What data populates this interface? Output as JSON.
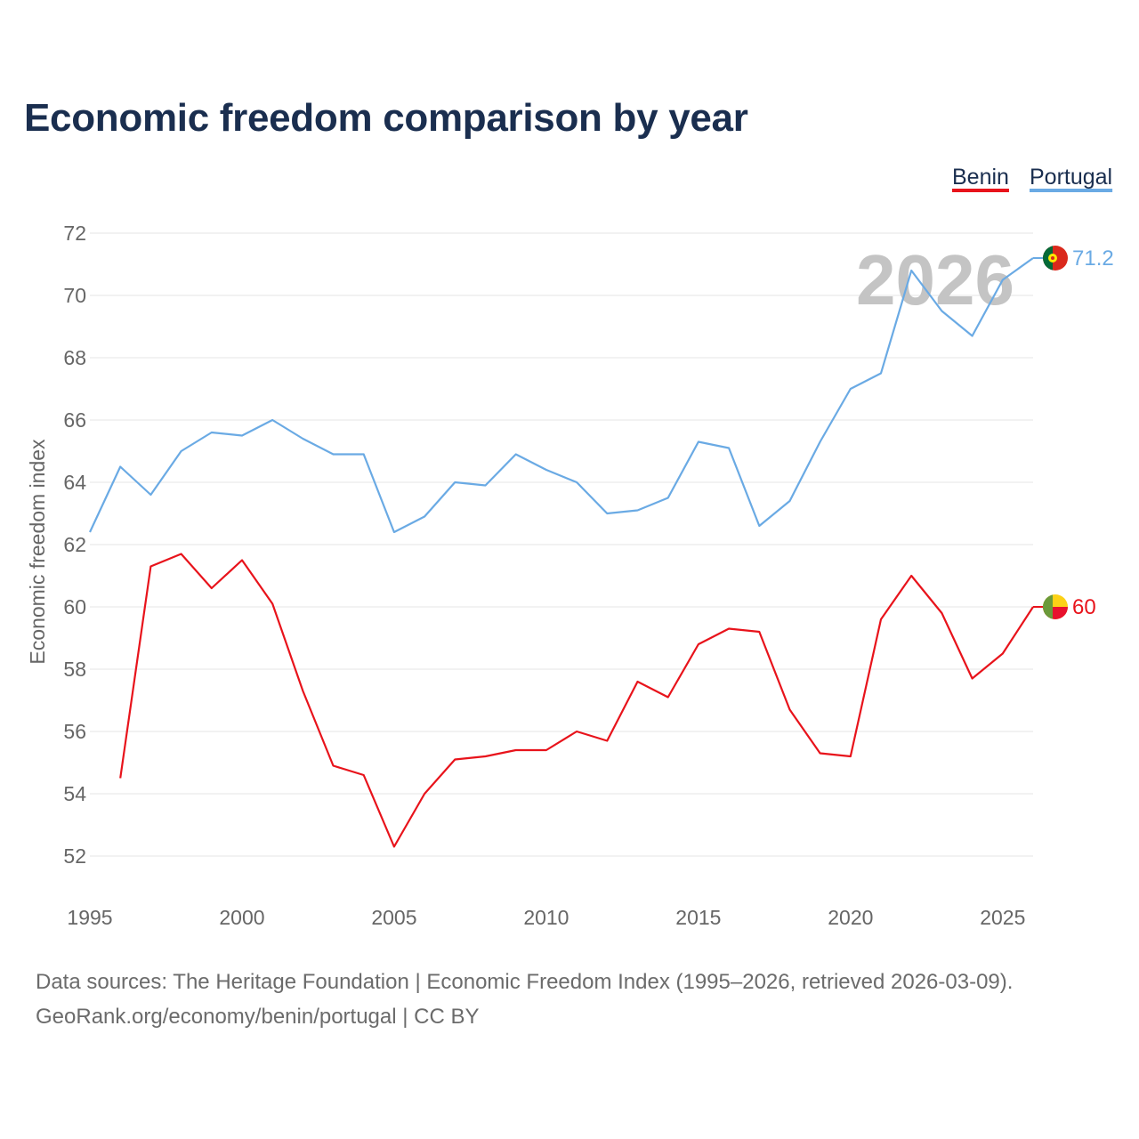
{
  "title": "Economic freedom comparison by year",
  "watermark_year": "2026",
  "footer": {
    "line1": "Data sources: The Heritage Foundation | Economic Freedom Index (1995–2026, retrieved 2026-03-09).",
    "line2": "GeoRank.org/economy/benin/portugal | CC BY"
  },
  "chart_data": {
    "type": "line",
    "title": "Economic freedom comparison by year",
    "xlabel": "",
    "ylabel": "Economic freedom index",
    "xlim": [
      1995,
      2026
    ],
    "ylim": [
      51,
      73
    ],
    "xticks": [
      1995,
      2000,
      2005,
      2010,
      2015,
      2020,
      2025
    ],
    "yticks": [
      52,
      54,
      56,
      58,
      60,
      62,
      64,
      66,
      68,
      70,
      72
    ],
    "grid": true,
    "legend_position": "top-right",
    "series": [
      {
        "name": "Benin",
        "color": "#e8131b",
        "end_label": "60",
        "x": [
          1996,
          1997,
          1998,
          1999,
          2000,
          2001,
          2002,
          2003,
          2004,
          2005,
          2006,
          2007,
          2008,
          2009,
          2010,
          2011,
          2012,
          2013,
          2014,
          2015,
          2016,
          2017,
          2018,
          2019,
          2020,
          2021,
          2022,
          2023,
          2024,
          2025,
          2026
        ],
        "values": [
          54.5,
          61.3,
          61.7,
          60.6,
          61.5,
          60.1,
          57.3,
          54.9,
          54.6,
          52.3,
          54.0,
          55.1,
          55.2,
          55.4,
          55.4,
          56.0,
          55.7,
          57.6,
          57.1,
          58.8,
          59.3,
          59.2,
          56.7,
          55.3,
          55.2,
          59.6,
          61.0,
          59.8,
          57.7,
          58.5,
          60.0
        ]
      },
      {
        "name": "Portugal",
        "color": "#6aaae4",
        "end_label": "71.2",
        "x": [
          1995,
          1996,
          1997,
          1998,
          1999,
          2000,
          2001,
          2002,
          2003,
          2004,
          2005,
          2006,
          2007,
          2008,
          2009,
          2010,
          2011,
          2012,
          2013,
          2014,
          2015,
          2016,
          2017,
          2018,
          2019,
          2020,
          2021,
          2022,
          2023,
          2024,
          2025,
          2026
        ],
        "values": [
          62.4,
          64.5,
          63.6,
          65.0,
          65.6,
          65.5,
          66.0,
          65.4,
          64.9,
          64.9,
          62.4,
          62.9,
          64.0,
          63.9,
          64.9,
          64.4,
          64.0,
          63.0,
          63.1,
          63.5,
          65.3,
          65.1,
          62.6,
          63.4,
          65.3,
          67.0,
          67.5,
          70.8,
          69.5,
          68.7,
          70.5,
          71.2
        ]
      }
    ]
  }
}
